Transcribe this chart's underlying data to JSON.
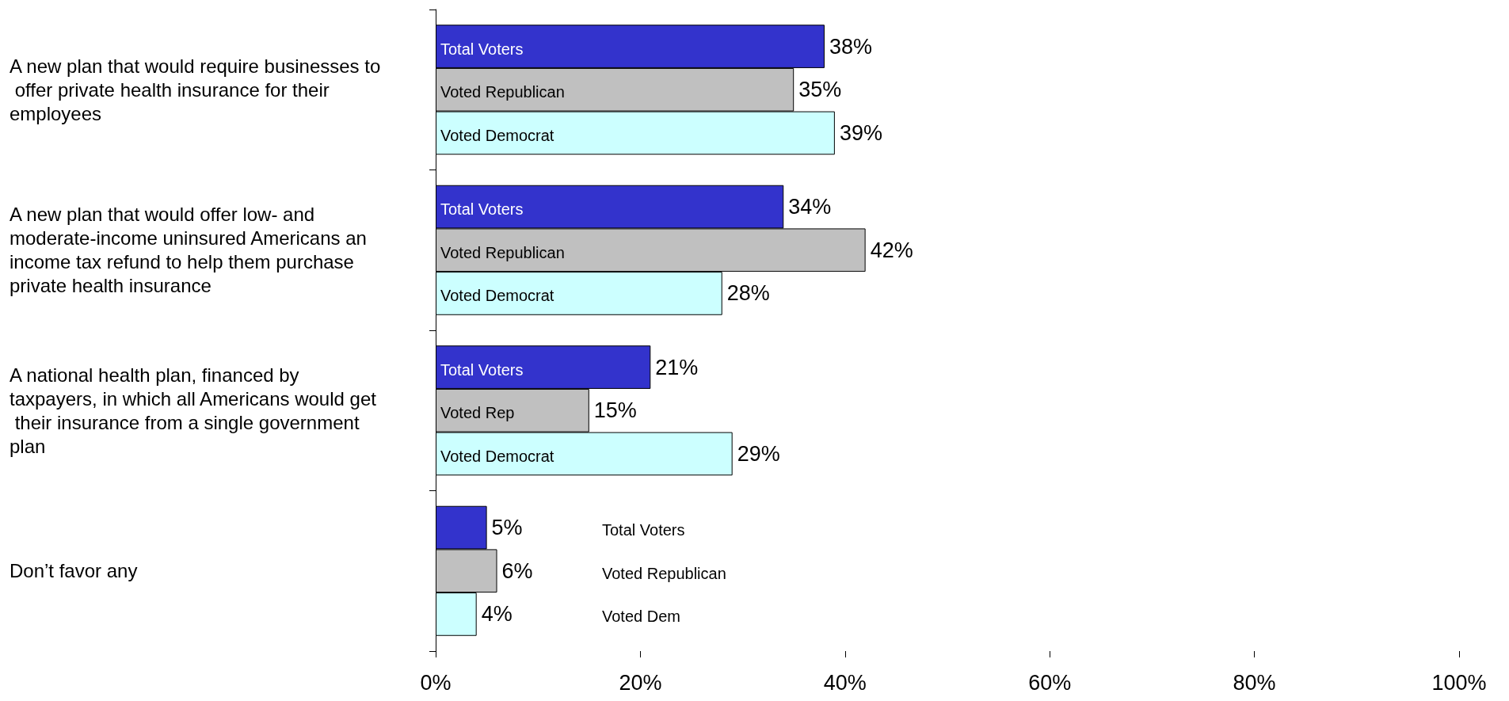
{
  "chart_data": {
    "type": "bar",
    "orientation": "horizontal",
    "categories": [
      "A new plan that would require businesses to offer private health insurance for their employees",
      "A new plan that would offer low- and moderate-income uninsured Americans an income tax refund to help them purchase private health insurance",
      "A national health plan, financed by taxpayers, in which all Americans would get their insurance from a single government plan",
      "Don’t favor any"
    ],
    "series": [
      {
        "color": "#3333cc",
        "values": [
          38,
          34,
          21,
          5
        ],
        "value_labels": [
          "38%",
          "34%",
          "21%",
          "5%"
        ]
      },
      {
        "color": "#c0c0c0",
        "values": [
          35,
          42,
          15,
          6
        ],
        "value_labels": [
          "35%",
          "42%",
          "15%",
          "6%"
        ]
      },
      {
        "color": "#ccffff",
        "values": [
          39,
          28,
          29,
          4
        ],
        "value_labels": [
          "39%",
          "28%",
          "29%",
          "4%"
        ]
      }
    ],
    "annotations": [
      "Total Voters",
      "Voted Republican",
      "Voted Democrat",
      "Total Voters",
      "Voted Republican",
      "Voted Democrat",
      "Total Voters",
      "Voted Rep",
      "Voted Democrat",
      "Total Voters",
      "Voted Republican",
      "Voted Dem"
    ],
    "xlim": [
      0,
      100
    ],
    "xticks": [
      {
        "value": 0,
        "label": "0%"
      },
      {
        "value": 20,
        "label": "20%"
      },
      {
        "value": 40,
        "label": "40%"
      },
      {
        "value": 60,
        "label": "60%"
      },
      {
        "value": 80,
        "label": "80%"
      },
      {
        "value": 100,
        "label": "100%"
      }
    ],
    "grid": false
  }
}
